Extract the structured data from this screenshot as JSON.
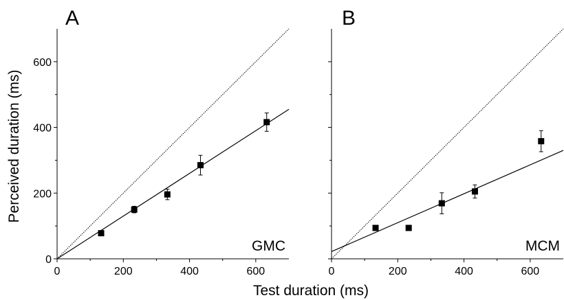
{
  "chart_data": [
    {
      "type": "scatter",
      "panel_label": "A",
      "subject": "GMC",
      "xlim": [
        0,
        700
      ],
      "ylim": [
        0,
        700
      ],
      "xticks": [
        0,
        200,
        400,
        600
      ],
      "yticks": [
        0,
        200,
        400,
        600
      ],
      "points": [
        {
          "x": 133,
          "y": 78,
          "err": 4
        },
        {
          "x": 233,
          "y": 150,
          "err": 10
        },
        {
          "x": 333,
          "y": 196,
          "err": 16
        },
        {
          "x": 433,
          "y": 285,
          "err": 30
        },
        {
          "x": 633,
          "y": 416,
          "err": 28
        }
      ],
      "fit_line": {
        "slope": 0.65,
        "intercept": 0
      },
      "identity_line": true
    },
    {
      "type": "scatter",
      "panel_label": "B",
      "subject": "MCM",
      "xlim": [
        0,
        700
      ],
      "ylim": [
        0,
        700
      ],
      "xticks": [
        0,
        200,
        400,
        600
      ],
      "yticks": [
        0,
        200,
        400,
        600
      ],
      "points": [
        {
          "x": 133,
          "y": 94,
          "err": 5
        },
        {
          "x": 233,
          "y": 94,
          "err": 8
        },
        {
          "x": 333,
          "y": 169,
          "err": 32
        },
        {
          "x": 433,
          "y": 205,
          "err": 20
        },
        {
          "x": 633,
          "y": 358,
          "err": 32
        }
      ],
      "fit_line": {
        "slope": 0.44,
        "intercept": 22
      },
      "identity_line": true
    }
  ],
  "xlabel": "Test duration (ms)",
  "ylabel": "Perceived duration (ms)"
}
